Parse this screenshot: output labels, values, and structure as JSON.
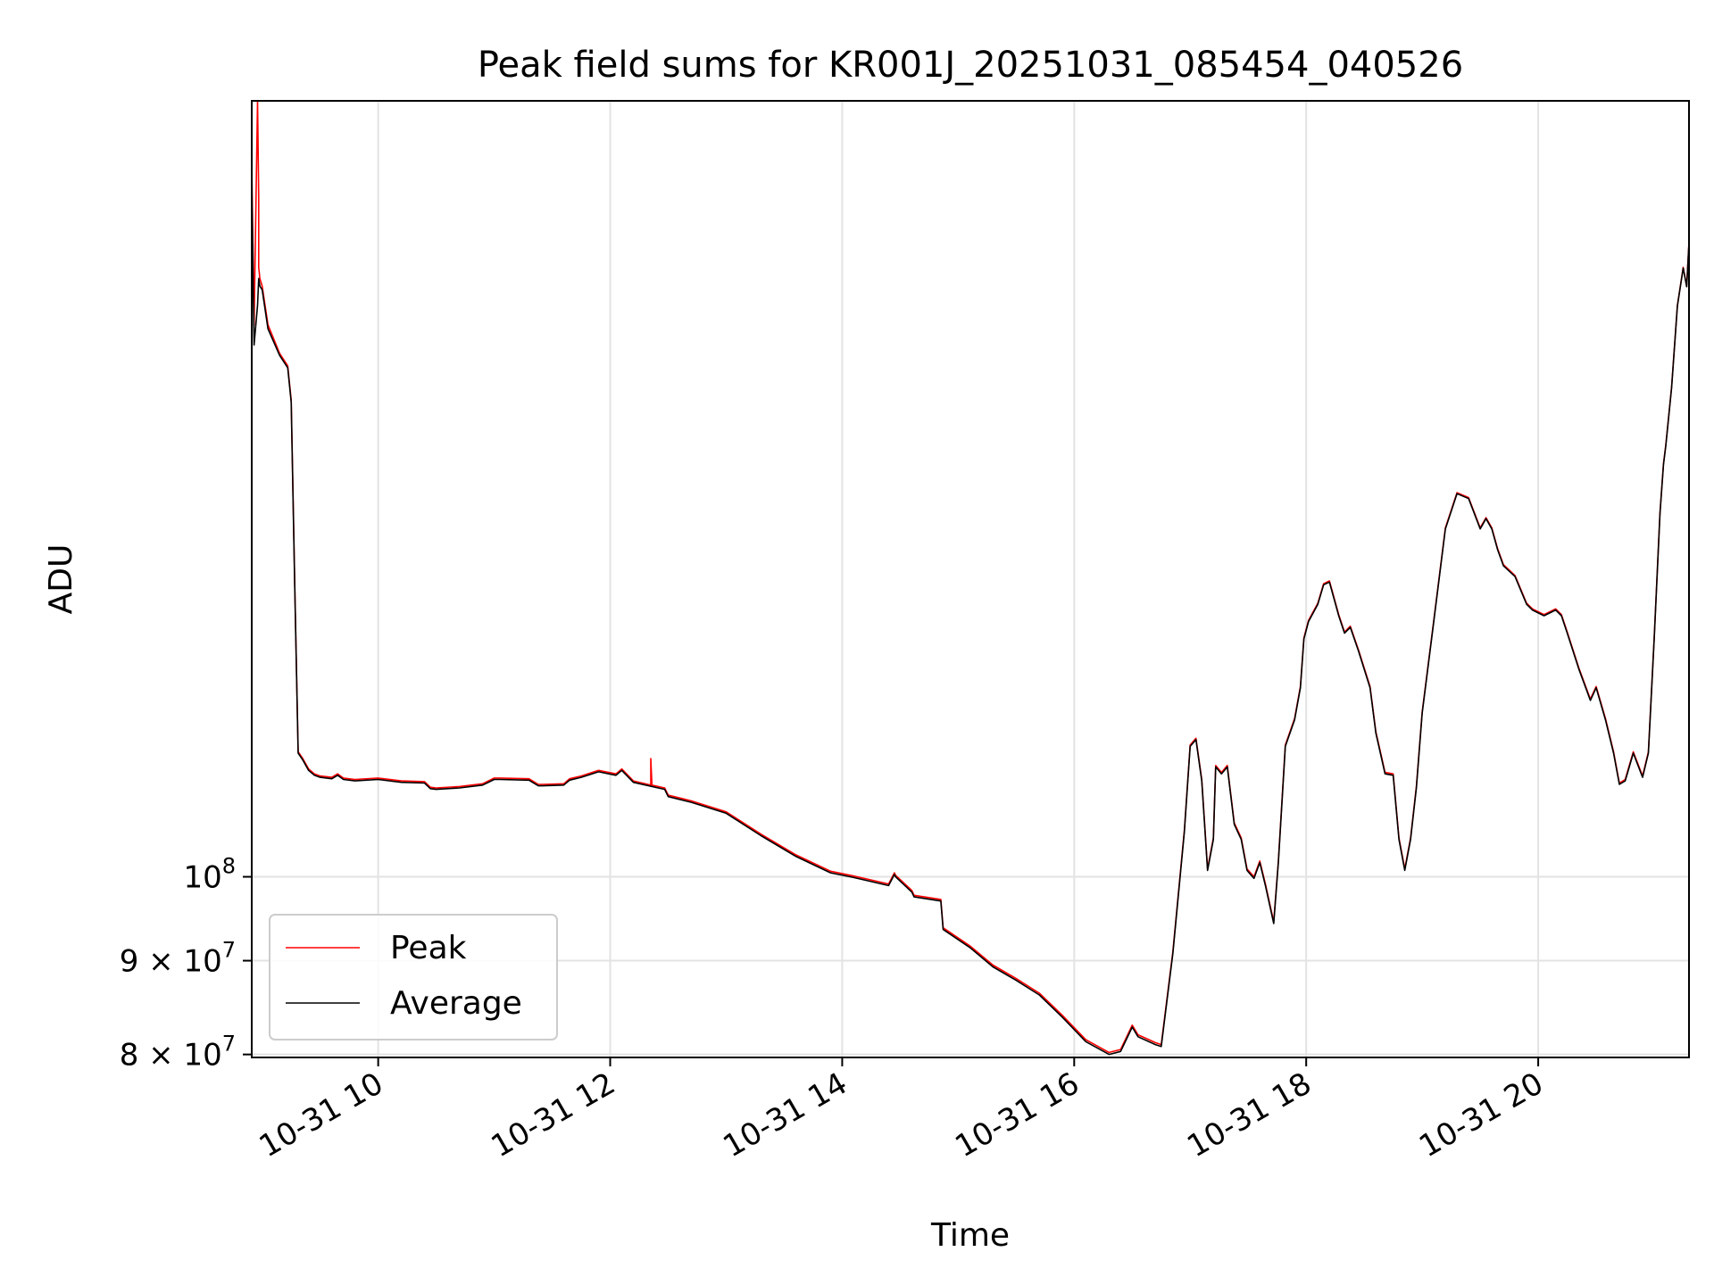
{
  "chart_data": {
    "type": "line",
    "title": "Peak field sums for KR001J_20251031_085454_040526",
    "xlabel": "Time",
    "ylabel": "ADU",
    "yscale": "log",
    "grid": true,
    "legend_position": "lower-left",
    "xlim": [
      8.91,
      21.3
    ],
    "ylim": [
      79700000,
      265000000
    ],
    "x_ticks": [
      {
        "value": 10,
        "label": "10-31 10"
      },
      {
        "value": 12,
        "label": "10-31 12"
      },
      {
        "value": 14,
        "label": "10-31 14"
      },
      {
        "value": 16,
        "label": "10-31 16"
      },
      {
        "value": 18,
        "label": "10-31 18"
      },
      {
        "value": 20,
        "label": "10-31 20"
      }
    ],
    "y_ticks": [
      {
        "value": 80000000,
        "base": "8",
        "mid": " × 10",
        "exp": "7"
      },
      {
        "value": 90000000,
        "base": "9",
        "mid": " × 10",
        "exp": "7"
      },
      {
        "value": 100000000,
        "base": "",
        "mid": "10",
        "exp": "8"
      }
    ],
    "series": [
      {
        "name": "Peak",
        "color": "#ff0000",
        "x": [
          8.91,
          8.93,
          8.96,
          8.97,
          8.97,
          8.98,
          9.0,
          9.05,
          9.15,
          9.22,
          9.25,
          9.28,
          9.31,
          9.35,
          9.4,
          9.45,
          9.5,
          9.6,
          9.65,
          9.7,
          9.8,
          10.0,
          10.2,
          10.4,
          10.45,
          10.5,
          10.7,
          10.9,
          11.0,
          11.05,
          11.3,
          11.38,
          11.42,
          11.6,
          11.65,
          11.75,
          11.9,
          12.05,
          12.1,
          12.2,
          12.35,
          12.35,
          12.36,
          12.47,
          12.5,
          12.7,
          13.0,
          13.3,
          13.6,
          13.9,
          14.1,
          14.4,
          14.45,
          14.46,
          14.6,
          14.62,
          14.85,
          14.87,
          15.1,
          15.3,
          15.5,
          15.7,
          15.9,
          16.1,
          16.3,
          16.4,
          16.5,
          16.55,
          16.7,
          16.75,
          16.85,
          16.95,
          17.0,
          17.05,
          17.1,
          17.15,
          17.2,
          17.22,
          17.27,
          17.32,
          17.38,
          17.44,
          17.49,
          17.55,
          17.6,
          17.65,
          17.72,
          17.76,
          17.82,
          17.9,
          17.95,
          17.98,
          18.02,
          18.1,
          18.15,
          18.2,
          18.28,
          18.33,
          18.38,
          18.45,
          18.55,
          18.6,
          18.68,
          18.75,
          18.8,
          18.85,
          18.9,
          18.95,
          19.0,
          19.1,
          19.2,
          19.3,
          19.4,
          19.5,
          19.55,
          19.6,
          19.65,
          19.7,
          19.8,
          19.9,
          19.95,
          20.05,
          20.15,
          20.2,
          20.25,
          20.35,
          20.45,
          20.5,
          20.58,
          20.65,
          20.7,
          20.75,
          20.82,
          20.9,
          20.95,
          21.0,
          21.05,
          21.08,
          21.1,
          21.15,
          21.2,
          21.25,
          21.28,
          21.3
        ],
        "values": [
          245000000,
          200000000,
          265000000,
          235000000,
          215000000,
          212000000,
          210000000,
          200000000,
          193000000,
          190000000,
          182000000,
          145000000,
          117000000,
          116000000,
          114500000,
          113800000,
          113500000,
          113300000,
          113800000,
          113200000,
          113000000,
          113200000,
          112800000,
          112700000,
          111900000,
          111800000,
          112000000,
          112400000,
          113200000,
          113200000,
          113100000,
          112300000,
          112300000,
          112400000,
          113100000,
          113500000,
          114300000,
          113800000,
          114500000,
          112800000,
          112200000,
          116000000,
          112200000,
          111800000,
          110800000,
          110000000,
          108500000,
          105500000,
          102800000,
          100700000,
          100100000,
          99100000,
          100500000,
          100200000,
          98300000,
          97700000,
          97200000,
          93800000,
          91700000,
          89500000,
          88000000,
          86400000,
          84000000,
          81500000,
          80200000,
          80500000,
          83000000,
          82000000,
          81200000,
          81000000,
          91000000,
          106000000,
          118000000,
          119000000,
          113000000,
          101000000,
          105000000,
          115000000,
          114000000,
          115000000,
          107000000,
          105000000,
          101000000,
          100000000,
          102000000,
          99000000,
          94500000,
          102000000,
          118000000,
          122000000,
          127000000,
          135000000,
          138000000,
          141000000,
          144500000,
          145000000,
          139000000,
          136000000,
          137000000,
          133000000,
          127000000,
          120000000,
          114000000,
          113800000,
          105000000,
          101000000,
          105000000,
          112000000,
          123000000,
          138000000,
          155000000,
          162000000,
          161000000,
          155000000,
          157000000,
          155000000,
          151000000,
          148000000,
          146000000,
          141000000,
          140000000,
          139000000,
          140000000,
          139000000,
          136000000,
          130000000,
          125000000,
          127000000,
          122000000,
          117000000,
          112500000,
          113000000,
          117000000,
          113500000,
          117000000,
          135000000,
          158000000,
          168000000,
          172000000,
          185000000,
          205000000,
          215000000,
          210000000,
          222000000
        ]
      },
      {
        "name": "Average",
        "color": "#000000",
        "x": [
          8.91,
          8.93,
          8.96,
          8.97,
          8.98,
          9.0,
          9.05,
          9.15,
          9.22,
          9.25,
          9.28,
          9.31,
          9.35,
          9.4,
          9.45,
          9.5,
          9.6,
          9.65,
          9.7,
          9.8,
          10.0,
          10.2,
          10.4,
          10.45,
          10.5,
          10.7,
          10.9,
          11.0,
          11.05,
          11.3,
          11.38,
          11.42,
          11.6,
          11.65,
          11.75,
          11.9,
          12.05,
          12.1,
          12.2,
          12.47,
          12.5,
          12.7,
          13.0,
          13.3,
          13.6,
          13.9,
          14.1,
          14.4,
          14.45,
          14.46,
          14.6,
          14.62,
          14.85,
          14.87,
          15.1,
          15.3,
          15.5,
          15.7,
          15.9,
          16.1,
          16.3,
          16.4,
          16.5,
          16.55,
          16.7,
          16.75,
          16.85,
          16.95,
          17.0,
          17.05,
          17.1,
          17.15,
          17.2,
          17.22,
          17.27,
          17.32,
          17.38,
          17.44,
          17.49,
          17.55,
          17.6,
          17.65,
          17.72,
          17.76,
          17.82,
          17.9,
          17.95,
          17.98,
          18.02,
          18.1,
          18.15,
          18.2,
          18.28,
          18.33,
          18.38,
          18.45,
          18.55,
          18.6,
          18.68,
          18.75,
          18.8,
          18.85,
          18.9,
          18.95,
          19.0,
          19.1,
          19.2,
          19.3,
          19.4,
          19.5,
          19.55,
          19.6,
          19.65,
          19.7,
          19.8,
          19.9,
          19.95,
          20.05,
          20.15,
          20.2,
          20.25,
          20.35,
          20.45,
          20.5,
          20.58,
          20.65,
          20.7,
          20.75,
          20.82,
          20.9,
          20.95,
          21.0,
          21.05,
          21.08,
          21.1,
          21.15,
          21.2,
          21.25,
          21.28,
          21.3
        ],
        "values": [
          240000000,
          195000000,
          205000000,
          212000000,
          210000000,
          209000000,
          199000000,
          192500000,
          189500000,
          181500000,
          144500000,
          116800000,
          115800000,
          114300000,
          113600000,
          113300000,
          113100000,
          113600000,
          113000000,
          112800000,
          113000000,
          112600000,
          112500000,
          111700000,
          111600000,
          111800000,
          112200000,
          113000000,
          113000000,
          112900000,
          112100000,
          112100000,
          112200000,
          112900000,
          113300000,
          114100000,
          113600000,
          114300000,
          112600000,
          111600000,
          110600000,
          109800000,
          108300000,
          105300000,
          102600000,
          100500000,
          99900000,
          98900000,
          100300000,
          100000000,
          98100000,
          97500000,
          97000000,
          93600000,
          91500000,
          89300000,
          87800000,
          86200000,
          83800000,
          81300000,
          80000000,
          80300000,
          82800000,
          81800000,
          81000000,
          80800000,
          90800000,
          105800000,
          117800000,
          118800000,
          112800000,
          100800000,
          104800000,
          114800000,
          113800000,
          114800000,
          106800000,
          104800000,
          100800000,
          99800000,
          101800000,
          98800000,
          94300000,
          101800000,
          117800000,
          121800000,
          126800000,
          134800000,
          137800000,
          140800000,
          144300000,
          144800000,
          138800000,
          135800000,
          136800000,
          132800000,
          126800000,
          119800000,
          113800000,
          113600000,
          104800000,
          100800000,
          104800000,
          111800000,
          122800000,
          137800000,
          154800000,
          161800000,
          160800000,
          154800000,
          156800000,
          154800000,
          150800000,
          147800000,
          145800000,
          140800000,
          139800000,
          138800000,
          139800000,
          138800000,
          135800000,
          129800000,
          124800000,
          126800000,
          121800000,
          116800000,
          112300000,
          112800000,
          116800000,
          113300000,
          116800000,
          134800000,
          157800000,
          167800000,
          171800000,
          184800000,
          204800000,
          214800000,
          209800000,
          221800000
        ]
      }
    ]
  }
}
